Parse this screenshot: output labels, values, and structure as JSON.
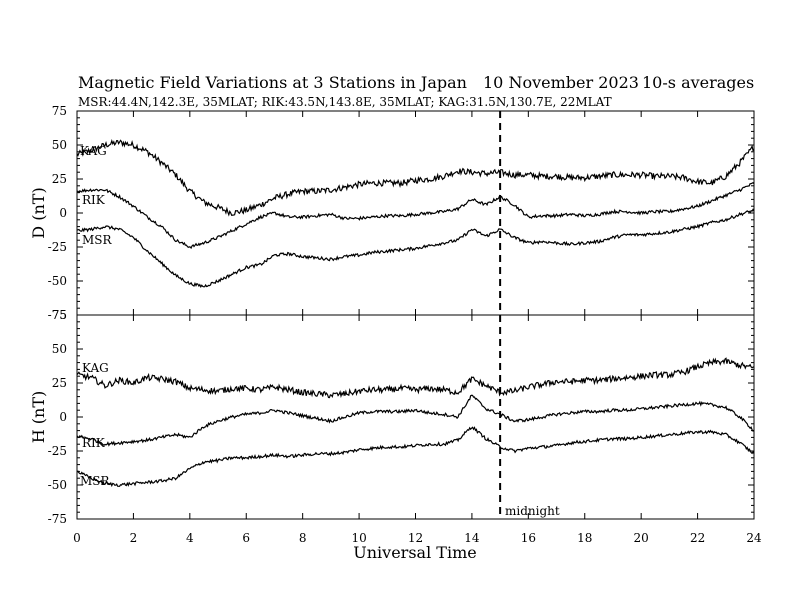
{
  "title": "Magnetic Field Variations at 3 Stations in Japan",
  "date": "10 November 2023",
  "averaging": "10-s averages",
  "stations_line": "MSR:44.4N,142.3E, 35MLAT;   RIK:43.5N,143.8E, 35MLAT;   KAG:31.5N,130.7E, 22MLAT",
  "midnight_label": "midnight",
  "chart_data": [
    {
      "type": "line",
      "ylabel": "D (nT)",
      "ylim": [
        -75,
        75
      ],
      "yticks": [
        75,
        50,
        25,
        0,
        -25,
        -50,
        -75
      ],
      "xlim": [
        0,
        24
      ],
      "xticks": [
        0,
        2,
        4,
        6,
        8,
        10,
        12,
        14,
        16,
        18,
        20,
        22,
        24
      ],
      "midnight_ut": 15,
      "series": [
        {
          "name": "KAG",
          "x": [
            0,
            0.5,
            1,
            1.5,
            2,
            2.5,
            3,
            3.5,
            4,
            4.5,
            5,
            5.5,
            6,
            6.5,
            7,
            7.5,
            8,
            8.5,
            9,
            9.5,
            10,
            10.5,
            11,
            11.5,
            12,
            12.5,
            13,
            13.5,
            14,
            14.5,
            15,
            15.5,
            16,
            16.5,
            17,
            17.5,
            18,
            18.5,
            19,
            19.5,
            20,
            20.5,
            21,
            21.5,
            22,
            22.5,
            23,
            23.5,
            24
          ],
          "values": [
            43,
            46,
            50,
            52,
            50,
            45,
            37,
            28,
            16,
            8,
            4,
            0,
            2,
            6,
            11,
            14,
            16,
            16,
            17,
            19,
            21,
            22,
            22,
            22,
            24,
            25,
            27,
            31,
            30,
            29,
            30,
            28,
            28,
            27,
            27,
            26,
            26,
            27,
            28,
            28,
            28,
            27,
            27,
            26,
            23,
            22,
            27,
            37,
            49
          ]
        },
        {
          "name": "RIK",
          "x": [
            0,
            0.5,
            1,
            1.5,
            2,
            2.5,
            3,
            3.5,
            4,
            4.5,
            5,
            5.5,
            6,
            6.5,
            7,
            7.5,
            8,
            8.5,
            9,
            9.5,
            10,
            10.5,
            11,
            11.5,
            12,
            12.5,
            13,
            13.5,
            14,
            14.5,
            15,
            15.5,
            16,
            16.5,
            17,
            17.5,
            18,
            18.5,
            19,
            19.5,
            20,
            20.5,
            21,
            21.5,
            22,
            22.5,
            23,
            23.5,
            24
          ],
          "values": [
            16,
            17,
            17,
            12,
            5,
            -3,
            -10,
            -20,
            -25,
            -22,
            -18,
            -13,
            -8,
            -3,
            0,
            -3,
            -3,
            -2,
            -1,
            -4,
            -4,
            -3,
            -2,
            -2,
            -1,
            0,
            1,
            3,
            10,
            6,
            12,
            6,
            -3,
            -2,
            -2,
            -1,
            -2,
            -1,
            1,
            1,
            0,
            1,
            1,
            3,
            5,
            9,
            13,
            17,
            22
          ]
        },
        {
          "name": "MSR",
          "x": [
            0,
            0.5,
            1,
            1.5,
            2,
            2.5,
            3,
            3.5,
            4,
            4.5,
            5,
            5.5,
            6,
            6.5,
            7,
            7.5,
            8,
            8.5,
            9,
            9.5,
            10,
            10.5,
            11,
            11.5,
            12,
            12.5,
            13,
            13.5,
            14,
            14.5,
            15,
            15.5,
            16,
            16.5,
            17,
            17.5,
            18,
            18.5,
            19,
            19.5,
            20,
            20.5,
            21,
            21.5,
            22,
            22.5,
            23,
            23.5,
            24
          ],
          "values": [
            -13,
            -12,
            -10,
            -12,
            -18,
            -28,
            -37,
            -46,
            -52,
            -54,
            -50,
            -45,
            -40,
            -38,
            -31,
            -30,
            -32,
            -33,
            -34,
            -32,
            -31,
            -29,
            -28,
            -27,
            -26,
            -24,
            -22,
            -20,
            -12,
            -17,
            -12,
            -18,
            -22,
            -21,
            -22,
            -23,
            -22,
            -21,
            -18,
            -16,
            -16,
            -15,
            -14,
            -12,
            -10,
            -7,
            -5,
            -1,
            2
          ]
        }
      ]
    },
    {
      "type": "line",
      "ylabel": "H (nT)",
      "ylim": [
        -75,
        75
      ],
      "yticks": [
        75,
        50,
        25,
        0,
        -25,
        -50,
        -75
      ],
      "xlim": [
        0,
        24
      ],
      "xticks": [
        0,
        2,
        4,
        6,
        8,
        10,
        12,
        14,
        16,
        18,
        20,
        22,
        24
      ],
      "xlabel": "Universal Time",
      "midnight_ut": 15,
      "series": [
        {
          "name": "KAG",
          "x": [
            0,
            0.5,
            1,
            1.5,
            2,
            2.5,
            3,
            3.5,
            4,
            4.5,
            5,
            5.5,
            6,
            6.5,
            7,
            7.5,
            8,
            8.5,
            9,
            9.5,
            10,
            10.5,
            11,
            11.5,
            12,
            12.5,
            13,
            13.5,
            14,
            14.5,
            15,
            15.5,
            16,
            16.5,
            17,
            17.5,
            18,
            18.5,
            19,
            19.5,
            20,
            20.5,
            21,
            21.5,
            22,
            22.5,
            23,
            23.5,
            24
          ],
          "values": [
            31,
            29,
            23,
            27,
            25,
            29,
            28,
            26,
            21,
            20,
            19,
            21,
            21,
            20,
            22,
            20,
            18,
            17,
            16,
            17,
            19,
            20,
            20,
            21,
            20,
            21,
            20,
            18,
            28,
            23,
            18,
            19,
            22,
            24,
            26,
            26,
            27,
            27,
            28,
            29,
            30,
            31,
            31,
            33,
            37,
            40,
            41,
            38,
            36
          ]
        },
        {
          "name": "RIK",
          "x": [
            0,
            0.5,
            1,
            1.5,
            2,
            2.5,
            3,
            3.5,
            4,
            4.5,
            5,
            5.5,
            6,
            6.5,
            7,
            7.5,
            8,
            8.5,
            9,
            9.5,
            10,
            10.5,
            11,
            11.5,
            12,
            12.5,
            13,
            13.5,
            14,
            14.5,
            15,
            15.5,
            16,
            16.5,
            17,
            17.5,
            18,
            18.5,
            19,
            19.5,
            20,
            20.5,
            21,
            21.5,
            22,
            22.5,
            23,
            23.5,
            24
          ],
          "values": [
            -14,
            -16,
            -20,
            -19,
            -18,
            -17,
            -15,
            -13,
            -15,
            -7,
            -3,
            0,
            2,
            3,
            5,
            3,
            1,
            -1,
            -3,
            0,
            3,
            4,
            4,
            4,
            5,
            3,
            2,
            0,
            16,
            6,
            2,
            -3,
            -2,
            0,
            2,
            3,
            4,
            4,
            5,
            5,
            6,
            7,
            8,
            9,
            10,
            9,
            7,
            0,
            -10
          ]
        },
        {
          "name": "MSR",
          "x": [
            0,
            0.5,
            1,
            1.5,
            2,
            2.5,
            3,
            3.5,
            4,
            4.5,
            5,
            5.5,
            6,
            6.5,
            7,
            7.5,
            8,
            8.5,
            9,
            9.5,
            10,
            10.5,
            11,
            11.5,
            12,
            12.5,
            13,
            13.5,
            14,
            14.5,
            15,
            15.5,
            16,
            16.5,
            17,
            17.5,
            18,
            18.5,
            19,
            19.5,
            20,
            20.5,
            21,
            21.5,
            22,
            22.5,
            23,
            23.5,
            24
          ],
          "values": [
            -40,
            -45,
            -49,
            -50,
            -49,
            -48,
            -47,
            -45,
            -38,
            -33,
            -32,
            -30,
            -30,
            -29,
            -28,
            -29,
            -28,
            -27,
            -27,
            -26,
            -24,
            -23,
            -22,
            -22,
            -21,
            -20,
            -20,
            -17,
            -7,
            -16,
            -22,
            -25,
            -23,
            -22,
            -21,
            -19,
            -18,
            -17,
            -16,
            -16,
            -15,
            -14,
            -13,
            -12,
            -11,
            -11,
            -13,
            -19,
            -27
          ]
        }
      ]
    }
  ]
}
